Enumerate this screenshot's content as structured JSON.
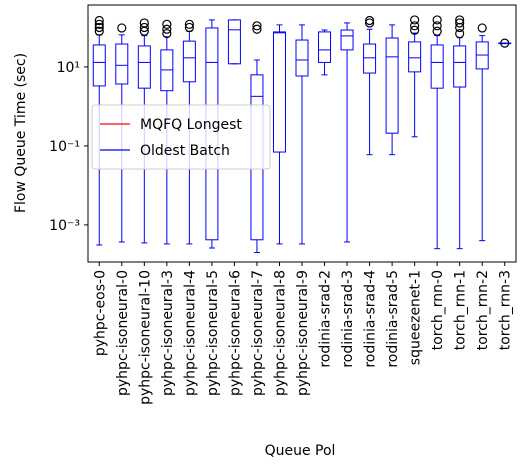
{
  "chart_data": {
    "type": "box",
    "xlabel": "Queue Pol",
    "ylabel": "Flow Queue Time (sec)",
    "log_y": true,
    "ylim": [
      0.000115,
      370
    ],
    "yticks": [
      {
        "value": 0.001,
        "label": "10⁻³"
      },
      {
        "value": 0.1,
        "label": "10⁻¹"
      },
      {
        "value": 10,
        "label": "10¹"
      }
    ],
    "legend_position": "center left",
    "categories": [
      "pyhpc-eos-0",
      "pyhpc-isoneural-0",
      "pyhpc-isoneural-10",
      "pyhpc-isoneural-3",
      "pyhpc-isoneural-4",
      "pyhpc-isoneural-5",
      "pyhpc-isoneural-6",
      "pyhpc-isoneural-7",
      "pyhpc-isoneural-8",
      "pyhpc-isoneural-9",
      "rodinia-srad-2",
      "rodinia-srad-3",
      "rodinia-srad-4",
      "rodinia-srad-5",
      "squeezenet-1",
      "torch_rnn-0",
      "torch_rnn-1",
      "torch_rnn-2",
      "torch_rnn-3"
    ],
    "series": [
      {
        "name": "MQFQ Longest",
        "color": "#ff0000"
      },
      {
        "name": "Oldest Batch",
        "color": "#0000ff",
        "flier_color": "#000000",
        "boxes": [
          {
            "whislo": 0.00031,
            "q1": 3.3,
            "med": 13,
            "q3": 36,
            "whishi": 65,
            "fliers": [
              80,
              100,
              120,
              150
            ]
          },
          {
            "whislo": 0.00037,
            "q1": 3.7,
            "med": 11,
            "q3": 38,
            "whishi": 65,
            "fliers": [
              97
            ]
          },
          {
            "whislo": 0.00035,
            "q1": 2.9,
            "med": 13,
            "q3": 34,
            "whishi": 62,
            "fliers": [
              80,
              100,
              130
            ]
          },
          {
            "whislo": 0.00033,
            "q1": 2.5,
            "med": 8.4,
            "q3": 27,
            "whishi": 58,
            "fliers": [
              70,
              90,
              120
            ]
          },
          {
            "whislo": 0.00033,
            "q1": 4.2,
            "med": 17,
            "q3": 45,
            "whishi": 80,
            "fliers": [
              100,
              120
            ]
          },
          {
            "whislo": 0.00026,
            "q1": 0.00042,
            "med": 13,
            "q3": 97,
            "whishi": 155,
            "fliers": []
          },
          {
            "whislo": 12,
            "q1": 12,
            "med": 87,
            "q3": 155,
            "whishi": 155,
            "fliers": []
          },
          {
            "whislo": 0.0002,
            "q1": 0.00042,
            "med": 1.8,
            "q3": 6.3,
            "whishi": 15,
            "fliers": [
              90,
              110
            ]
          },
          {
            "whislo": 0.00033,
            "q1": 0.07,
            "med": 73,
            "q3": 77,
            "whishi": 116,
            "fliers": []
          },
          {
            "whislo": 0.00033,
            "q1": 5.9,
            "med": 15,
            "q3": 48,
            "whishi": 116,
            "fliers": []
          },
          {
            "whislo": 6.3,
            "q1": 13,
            "med": 27,
            "q3": 77,
            "whishi": 86,
            "fliers": []
          },
          {
            "whislo": 0.00037,
            "q1": 27,
            "med": 61,
            "q3": 86,
            "whishi": 130,
            "fliers": []
          },
          {
            "whislo": 0.06,
            "q1": 7,
            "med": 17,
            "q3": 38,
            "whishi": 90,
            "fliers": [
              130,
              150
            ]
          },
          {
            "whislo": 0.06,
            "q1": 0.21,
            "med": 18,
            "q3": 54,
            "whishi": 116,
            "fliers": []
          },
          {
            "whislo": 0.17,
            "q1": 7.5,
            "med": 17,
            "q3": 43,
            "whishi": 72,
            "fliers": [
              85,
              110,
              155
            ]
          },
          {
            "whislo": 0.00025,
            "q1": 2.9,
            "med": 13,
            "q3": 36,
            "whishi": 62,
            "fliers": [
              80,
              110,
              155
            ]
          },
          {
            "whislo": 0.00025,
            "q1": 3.1,
            "med": 13,
            "q3": 34,
            "whishi": 55,
            "fliers": [
              70,
              100,
              130,
              155
            ]
          },
          {
            "whislo": 0.0004,
            "q1": 8.9,
            "med": 20,
            "q3": 43,
            "whishi": 62,
            "fliers": [
              97
            ]
          },
          {
            "whislo": 40,
            "q1": 40,
            "med": 40,
            "q3": 40,
            "whishi": 40,
            "fliers": [
              40
            ]
          }
        ]
      }
    ]
  }
}
